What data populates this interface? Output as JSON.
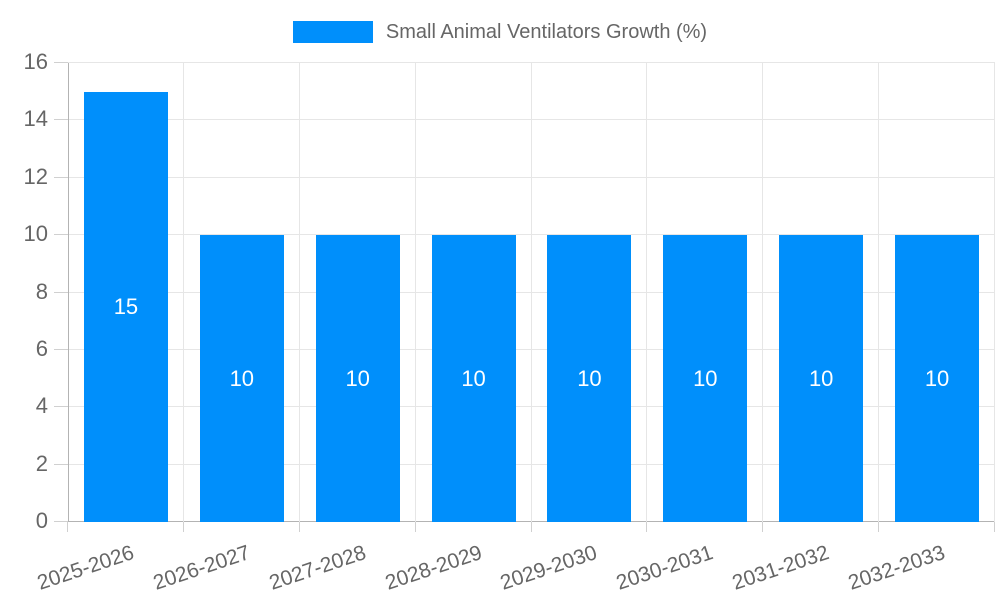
{
  "chart_data": {
    "type": "bar",
    "title": "",
    "legend": {
      "label": "Small Animal Ventilators Growth (%)",
      "position": "top"
    },
    "categories": [
      "2025-2026",
      "2026-2027",
      "2027-2028",
      "2028-2029",
      "2029-2030",
      "2030-2031",
      "2031-2032",
      "2032-2033"
    ],
    "values": [
      15,
      10,
      10,
      10,
      10,
      10,
      10,
      10
    ],
    "xlabel": "",
    "ylabel": "",
    "ylim": [
      0,
      16
    ],
    "yticks": [
      0,
      2,
      4,
      6,
      8,
      10,
      12,
      14,
      16
    ],
    "grid": true,
    "x_label_rotation_deg": -18.5,
    "colors": {
      "bar": "#008ffb",
      "data_label": "#ffffff",
      "axis_text": "#666666",
      "grid_line": "#e6e6e6",
      "axis_line": "#b3b3b3",
      "tick_mark": "#d0d0d0",
      "background": "#ffffff"
    }
  }
}
